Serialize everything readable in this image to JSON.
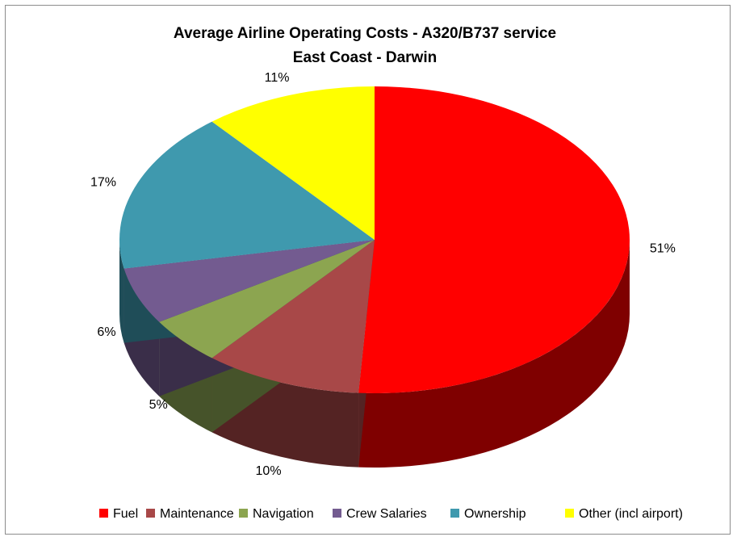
{
  "chart_data": {
    "type": "pie",
    "title": "Average Airline Operating Costs - A320/B737 service",
    "subtitle": "East Coast - Darwin",
    "three_d": true,
    "legend_position": "bottom",
    "slices": [
      {
        "label": "Fuel",
        "value": 51,
        "value_label": "51%",
        "color": "#ff0000",
        "side_color": "#7f0000"
      },
      {
        "label": "Maintenance",
        "value": 10,
        "value_label": "10%",
        "color": "#a84848",
        "side_color": "#542323"
      },
      {
        "label": "Navigation",
        "value": 5,
        "value_label": "5%",
        "color": "#8ca550",
        "side_color": "#46532a"
      },
      {
        "label": "Crew Salaries",
        "value": 6,
        "value_label": "6%",
        "color": "#735b90",
        "side_color": "#3a2e49"
      },
      {
        "label": "Ownership",
        "value": 17,
        "value_label": "17%",
        "color": "#3f99ae",
        "side_color": "#1f4d58"
      },
      {
        "label": "Other (incl airport)",
        "value": 11,
        "value_label": "11%",
        "color": "#ffff00",
        "side_color": "#7f7f00"
      }
    ]
  }
}
